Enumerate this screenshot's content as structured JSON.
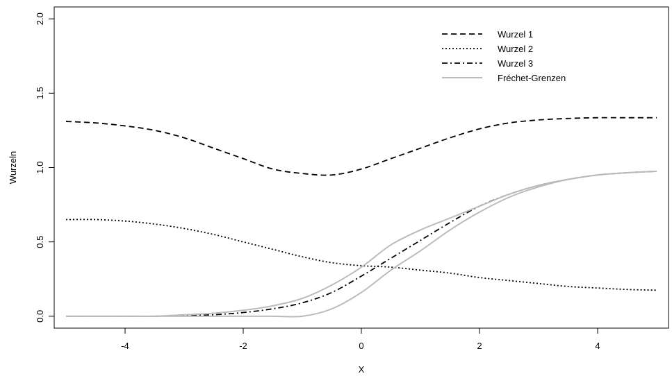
{
  "chart_data": {
    "type": "line",
    "title": "",
    "xlabel": "X",
    "ylabel": "Wurzeln",
    "xlim": [
      -5.2,
      5.2
    ],
    "ylim": [
      -0.08,
      2.08
    ],
    "xticks": [
      -4,
      -2,
      0,
      2,
      4
    ],
    "yticks": [
      0.0,
      0.5,
      1.0,
      1.5,
      2.0
    ],
    "xtick_labels": [
      "-4",
      "-2",
      "0",
      "2",
      "4"
    ],
    "ytick_labels": [
      "0.0",
      "0.5",
      "1.0",
      "1.5",
      "2.0"
    ],
    "grid": false,
    "legend_position": "top-right",
    "x": [
      -5,
      -4.5,
      -4,
      -3.5,
      -3,
      -2.5,
      -2,
      -1.5,
      -1,
      -0.5,
      0,
      0.5,
      1,
      1.5,
      2,
      2.5,
      3,
      3.5,
      4,
      4.5,
      5
    ],
    "series": [
      {
        "name": "Wurzel 1",
        "style": "dashed",
        "color": "#000000",
        "values": [
          1.31,
          1.3,
          1.28,
          1.25,
          1.2,
          1.13,
          1.06,
          0.99,
          0.96,
          0.95,
          0.99,
          1.06,
          1.13,
          1.2,
          1.26,
          1.3,
          1.32,
          1.33,
          1.335,
          1.335,
          1.335
        ]
      },
      {
        "name": "Wurzel 2",
        "style": "dotted",
        "color": "#000000",
        "values": [
          0.65,
          0.65,
          0.64,
          0.62,
          0.59,
          0.55,
          0.5,
          0.45,
          0.4,
          0.36,
          0.34,
          0.33,
          0.31,
          0.29,
          0.26,
          0.24,
          0.22,
          0.2,
          0.19,
          0.18,
          0.175
        ]
      },
      {
        "name": "Wurzel 3",
        "style": "dashdot",
        "color": "#000000",
        "values": [
          0.0,
          0.0,
          0.0,
          0.0,
          0.005,
          0.01,
          0.025,
          0.05,
          0.09,
          0.16,
          0.27,
          0.39,
          0.51,
          0.63,
          0.74,
          0.82,
          0.88,
          0.92,
          0.95,
          0.965,
          0.975
        ]
      },
      {
        "name": "Fréchet-Grenzen",
        "style": "solid",
        "color": "#bbbbbb",
        "values_upper": [
          0.0,
          0.0,
          0.0,
          0.0,
          0.01,
          0.02,
          0.04,
          0.07,
          0.12,
          0.21,
          0.33,
          0.48,
          0.58,
          0.66,
          0.74,
          0.82,
          0.88,
          0.92,
          0.95,
          0.965,
          0.975
        ],
        "values_lower": [
          0.0,
          0.0,
          0.0,
          0.0,
          0.0,
          0.0,
          0.0,
          0.0,
          0.0,
          0.05,
          0.16,
          0.31,
          0.44,
          0.58,
          0.7,
          0.8,
          0.87,
          0.92,
          0.95,
          0.965,
          0.975
        ]
      }
    ]
  }
}
